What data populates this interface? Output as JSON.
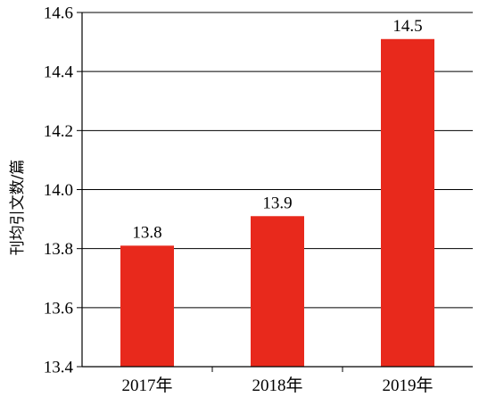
{
  "chart_data": {
    "type": "bar",
    "title": "",
    "xlabel": "",
    "ylabel": "刊均引文数/篇",
    "categories": [
      "2017年",
      "2018年",
      "2019年"
    ],
    "values": [
      13.81,
      13.91,
      14.51
    ],
    "data_labels": [
      "13.8",
      "13.9",
      "14.5"
    ],
    "ylim": [
      13.4,
      14.6
    ],
    "yticks": [
      "13.4",
      "13.6",
      "13.8",
      "14.0",
      "14.2",
      "14.4",
      "14.6"
    ],
    "grid": "horizontal",
    "legend": "none",
    "bar_color": "#e8291c",
    "axis_color": "#000000"
  }
}
